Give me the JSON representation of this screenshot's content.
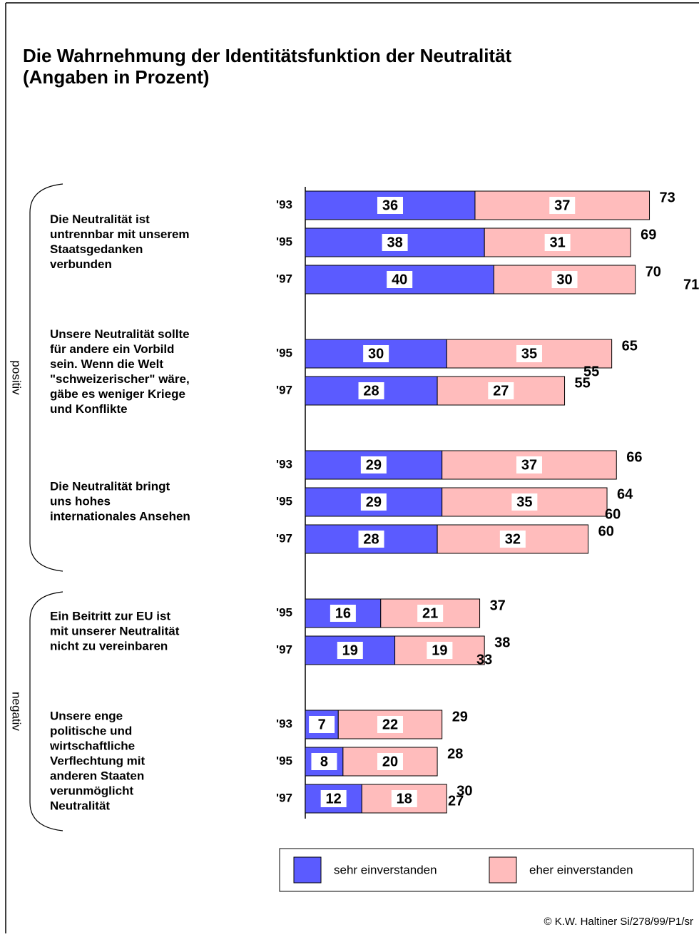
{
  "chart_data": {
    "type": "stacked_bar",
    "title": "Die Wahrnehmung der Identitätsfunktion der Neutralität",
    "subtitle": "(Angaben in Prozent)",
    "xlim": [
      0,
      100
    ],
    "series": [
      {
        "name": "sehr einverstanden",
        "color": "#5b5bff"
      },
      {
        "name": "eher einverstanden",
        "color": "#ffbcbc"
      }
    ],
    "sections": [
      {
        "label": "positiv",
        "groups": [
          {
            "label": [
              "Die Neutralität ist",
              "untrennbar mit unserem",
              "Staatsgedanken",
              "verbunden"
            ],
            "categories": [
              "'93",
              "'95",
              "'97"
            ],
            "values": [
              [
                36,
                37
              ],
              [
                38,
                31
              ],
              [
                40,
                30
              ]
            ],
            "totals": [
              73,
              69,
              70
            ]
          },
          {
            "label": [
              "Unsere Neutralität sollte",
              "für andere ein Vorbild",
              "sein. Wenn die Welt",
              "\"schweizerischer\" wäre,",
              "gäbe es weniger Kriege",
              "und Konflikte"
            ],
            "categories": [
              "'95",
              "'97"
            ],
            "values": [
              [
                30,
                35
              ],
              [
                28,
                27
              ]
            ],
            "totals": [
              65,
              55
            ]
          },
          {
            "label": [
              "Die Neutralität bringt",
              "uns hohes",
              "internationales Ansehen"
            ],
            "categories": [
              "'93",
              "'95",
              "'97"
            ],
            "values": [
              [
                29,
                37
              ],
              [
                29,
                35
              ],
              [
                28,
                32
              ]
            ],
            "totals": [
              66,
              64,
              60
            ]
          }
        ]
      },
      {
        "label": "negativ",
        "groups": [
          {
            "label": [
              "Ein Beitritt zur EU ist",
              "mit unserer Neutralität",
              "nicht zu vereinbaren"
            ],
            "categories": [
              "'95",
              "'97"
            ],
            "values": [
              [
                16,
                21
              ],
              [
                19,
                19
              ]
            ],
            "totals": [
              37,
              38
            ]
          },
          {
            "label": [
              "Unsere enge",
              "politische und",
              "wirtschaftliche",
              "Verflechtung mit",
              "anderen Staaten",
              "verunmöglicht",
              "Neutralität"
            ],
            "categories": [
              "'93",
              "'95",
              "'97"
            ],
            "values": [
              [
                7,
                22
              ],
              [
                8,
                20
              ],
              [
                12,
                18
              ]
            ],
            "totals": [
              29,
              28,
              30
            ]
          }
        ]
      }
    ],
    "annotations": [
      71,
      55,
      60,
      33,
      27
    ],
    "footer": "© K.W. Haltiner Si/278/99/P1/sr"
  }
}
